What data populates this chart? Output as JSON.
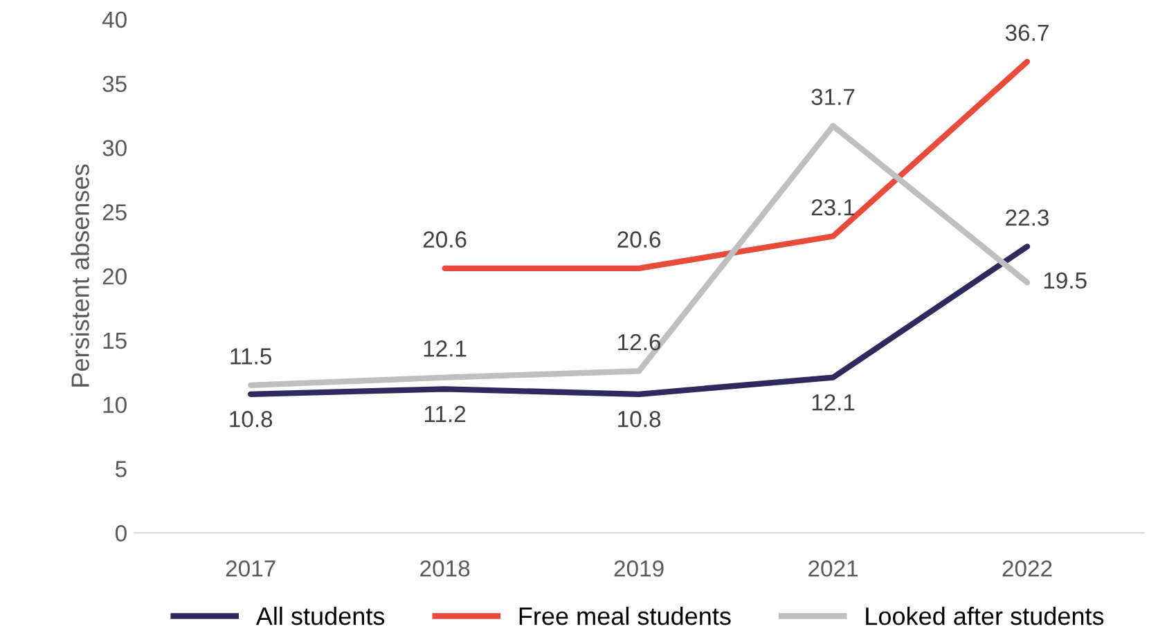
{
  "chart_data": {
    "type": "line",
    "ylabel": "Persistent absenses",
    "categories": [
      "2017",
      "2018",
      "2019",
      "2021",
      "2022"
    ],
    "series": [
      {
        "name": "All students",
        "color": "#2e2a5e",
        "values": [
          10.8,
          11.2,
          10.8,
          12.1,
          22.3
        ]
      },
      {
        "name": "Free meal students",
        "color": "#e84a3c",
        "values": [
          null,
          20.6,
          20.6,
          23.1,
          36.7
        ]
      },
      {
        "name": "Looked after students",
        "color": "#bfbfbf",
        "values": [
          11.5,
          12.1,
          12.6,
          31.7,
          19.5
        ]
      }
    ],
    "ylim": [
      0,
      40
    ],
    "yticks": [
      0,
      5,
      10,
      15,
      20,
      25,
      30,
      35,
      40
    ],
    "grid": false,
    "legend": "bottom",
    "data_labels": true,
    "marker": "none",
    "line_style": "solid"
  }
}
